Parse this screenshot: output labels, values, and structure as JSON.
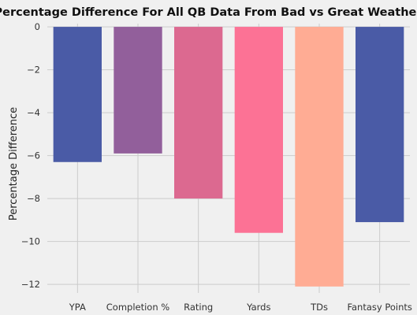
{
  "chart_data": {
    "type": "bar",
    "title": "Percentage Difference For All QB Data From Bad vs Great Weather",
    "xlabel": "",
    "ylabel": "Percentage Difference",
    "categories": [
      "YPA",
      "Completion %",
      "Rating",
      "Yards",
      "TDs",
      "Fantasy Points"
    ],
    "values": [
      -6.3,
      -5.9,
      -8.0,
      -9.6,
      -12.1,
      -9.1
    ],
    "colors": [
      "#4a5ba6",
      "#925f9b",
      "#dc6990",
      "#fc7295",
      "#ffac94",
      "#4a5ba6"
    ],
    "ylim": [
      -12.4,
      0.15
    ],
    "yticks": [
      0,
      -2,
      -4,
      -6,
      -8,
      -10,
      -12
    ],
    "ytick_labels": [
      "0",
      "−2",
      "−4",
      "−6",
      "−8",
      "−10",
      "−12"
    ],
    "grid": true,
    "background": "#f0f0f0"
  }
}
